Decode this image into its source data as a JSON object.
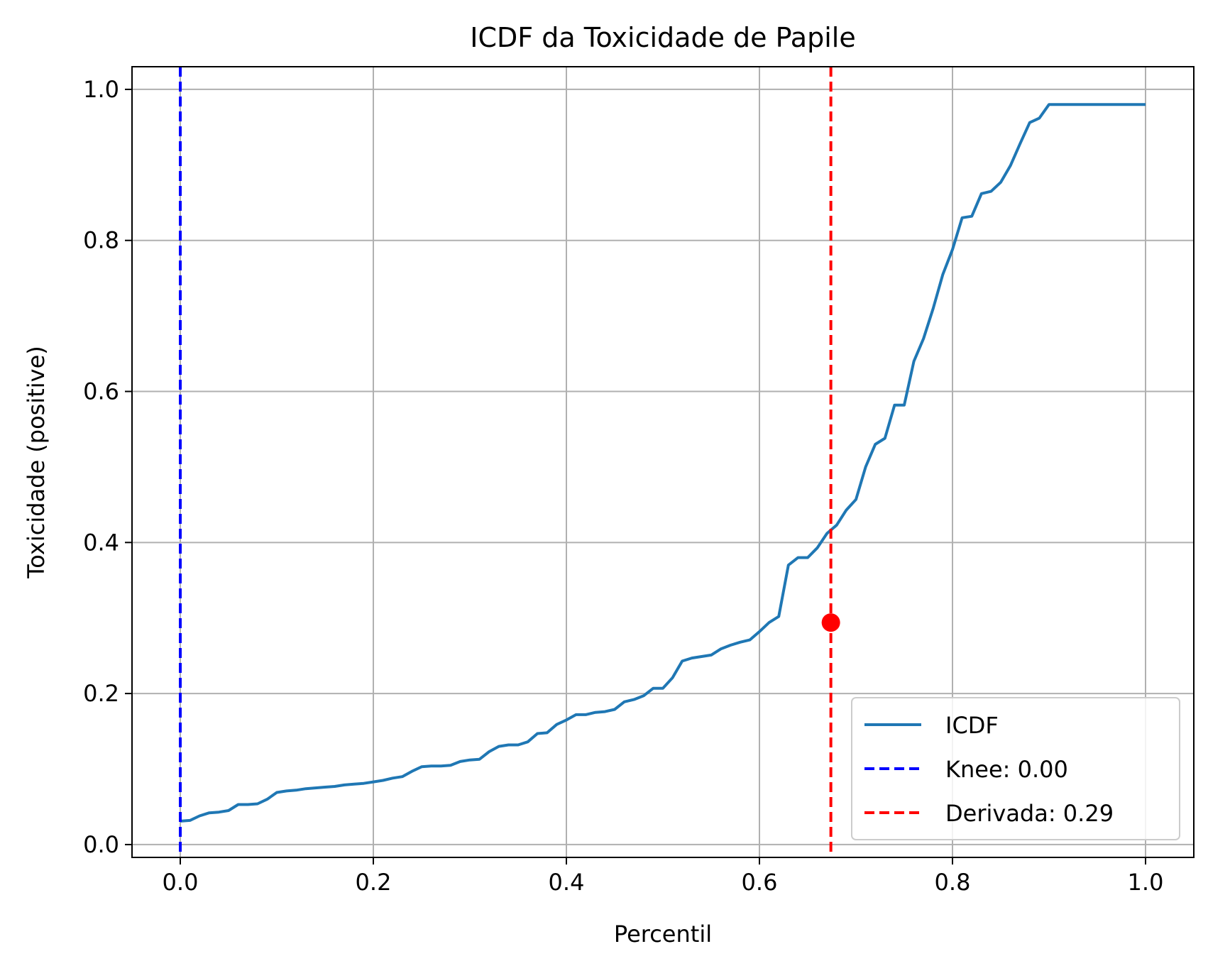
{
  "chart_data": {
    "type": "line",
    "title": "ICDF da Toxicidade de Papile",
    "xlabel": "Percentil",
    "ylabel": "Toxicidade (positive)",
    "xlim": [
      -0.05,
      1.05
    ],
    "ylim": [
      -0.017,
      1.03
    ],
    "xticks": [
      "0.0",
      "0.2",
      "0.4",
      "0.6",
      "0.8",
      "1.0"
    ],
    "yticks": [
      "0.0",
      "0.2",
      "0.4",
      "0.6",
      "0.8",
      "1.0"
    ],
    "grid": true,
    "legend_position": "lower-right",
    "series": [
      {
        "name": "ICDF",
        "color": "#1f77b4",
        "x": [
          0.0,
          0.01,
          0.02,
          0.03,
          0.04,
          0.05,
          0.06,
          0.07,
          0.08,
          0.09,
          0.1,
          0.11,
          0.12,
          0.13,
          0.14,
          0.15,
          0.16,
          0.17,
          0.18,
          0.19,
          0.2,
          0.21,
          0.22,
          0.23,
          0.24,
          0.25,
          0.26,
          0.27,
          0.28,
          0.29,
          0.3,
          0.31,
          0.32,
          0.33,
          0.34,
          0.35,
          0.36,
          0.37,
          0.38,
          0.39,
          0.4,
          0.41,
          0.42,
          0.43,
          0.44,
          0.45,
          0.46,
          0.47,
          0.48,
          0.49,
          0.5,
          0.51,
          0.52,
          0.53,
          0.54,
          0.55,
          0.56,
          0.57,
          0.58,
          0.59,
          0.6,
          0.61,
          0.62,
          0.63,
          0.64,
          0.65,
          0.66,
          0.67,
          0.68,
          0.69,
          0.7,
          0.71,
          0.72,
          0.73,
          0.74,
          0.75,
          0.76,
          0.77,
          0.78,
          0.79,
          0.8,
          0.81,
          0.82,
          0.83,
          0.84,
          0.85,
          0.86,
          0.87,
          0.88,
          0.89,
          0.9,
          0.91,
          0.92,
          0.93,
          0.94,
          0.95,
          0.96,
          0.97,
          0.98,
          0.99,
          1.0
        ],
        "y": [
          0.031,
          0.032,
          0.038,
          0.042,
          0.043,
          0.045,
          0.053,
          0.053,
          0.054,
          0.06,
          0.069,
          0.071,
          0.072,
          0.074,
          0.075,
          0.076,
          0.077,
          0.079,
          0.08,
          0.081,
          0.083,
          0.085,
          0.088,
          0.09,
          0.097,
          0.103,
          0.104,
          0.104,
          0.105,
          0.11,
          0.112,
          0.113,
          0.123,
          0.13,
          0.132,
          0.132,
          0.136,
          0.147,
          0.148,
          0.159,
          0.165,
          0.172,
          0.172,
          0.175,
          0.176,
          0.179,
          0.189,
          0.192,
          0.197,
          0.207,
          0.207,
          0.221,
          0.243,
          0.247,
          0.249,
          0.251,
          0.259,
          0.264,
          0.268,
          0.271,
          0.282,
          0.294,
          0.302,
          0.37,
          0.38,
          0.38,
          0.393,
          0.412,
          0.423,
          0.443,
          0.457,
          0.5,
          0.53,
          0.538,
          0.582,
          0.582,
          0.64,
          0.67,
          0.71,
          0.755,
          0.788,
          0.83,
          0.832,
          0.862,
          0.865,
          0.877,
          0.899,
          0.928,
          0.956,
          0.962,
          0.98,
          0.98,
          0.98,
          0.98,
          0.98,
          0.98,
          0.98,
          0.98,
          0.98,
          0.98,
          0.98
        ]
      },
      {
        "name": "Knee: 0.00",
        "type": "vline",
        "x": 0.0,
        "color": "#0000ff",
        "dash": "dashed"
      },
      {
        "name": "Derivada: 0.29",
        "type": "vline",
        "x": 0.674,
        "color": "#ff0000",
        "dash": "dashed"
      }
    ],
    "markers": [
      {
        "x": 0.674,
        "y": 0.294,
        "color": "#ff0000"
      }
    ]
  }
}
